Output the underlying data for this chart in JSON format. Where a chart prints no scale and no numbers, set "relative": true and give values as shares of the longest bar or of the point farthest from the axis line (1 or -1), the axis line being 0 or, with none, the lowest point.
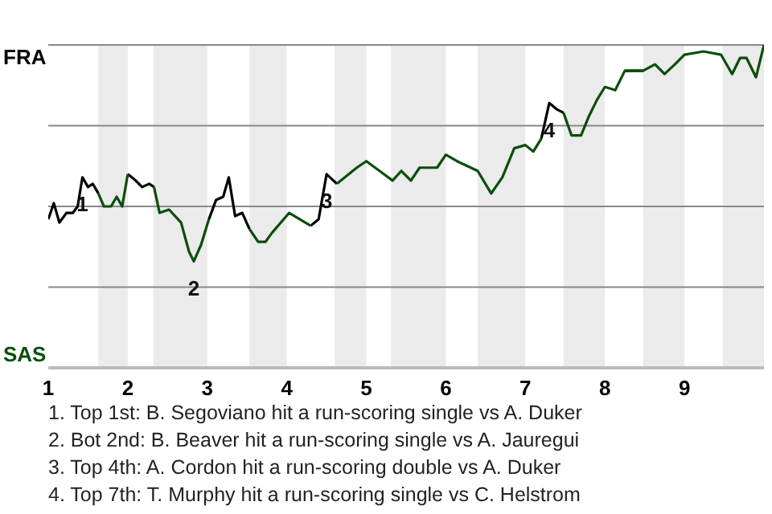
{
  "chart_data": {
    "type": "line",
    "relative": true,
    "grid": "y",
    "legend": false,
    "marker": "none",
    "line_style": "solid",
    "x": [
      1.0,
      1.07,
      1.14,
      1.23,
      1.31,
      1.37,
      1.43,
      1.5,
      1.56,
      1.63,
      1.7,
      1.79,
      1.86,
      1.93,
      2.0,
      2.1,
      2.18,
      2.27,
      2.33,
      2.4,
      2.52,
      2.67,
      2.77,
      2.83,
      2.92,
      3.02,
      3.11,
      3.2,
      3.27,
      3.35,
      3.44,
      3.53,
      3.64,
      3.73,
      3.82,
      4.03,
      4.3,
      4.4,
      4.5,
      4.63,
      4.88,
      5.0,
      5.22,
      5.33,
      5.44,
      5.56,
      5.67,
      5.89,
      6.0,
      6.14,
      6.4,
      6.57,
      6.71,
      6.86,
      7.0,
      7.1,
      7.2,
      7.3,
      7.4,
      7.48,
      7.58,
      7.7,
      7.8,
      7.9,
      8.0,
      8.13,
      8.25,
      8.48,
      8.63,
      8.75,
      8.88,
      9.0,
      9.24,
      9.46,
      9.6,
      9.7,
      9.78,
      9.9,
      10.0
    ],
    "xlim": [
      1,
      10
    ],
    "xticks": [
      1,
      2,
      3,
      4,
      5,
      6,
      7,
      8,
      9
    ],
    "series": [
      {
        "name": "FRA",
        "color": "#000000",
        "values": [
          0.46,
          0.51,
          0.45,
          0.48,
          0.48,
          0.5,
          0.59,
          0.56,
          0.57,
          0.54,
          null,
          null,
          null,
          null,
          0.6,
          0.58,
          0.56,
          0.57,
          0.56,
          null,
          null,
          null,
          null,
          null,
          null,
          0.46,
          0.52,
          0.53,
          0.59,
          0.47,
          0.48,
          0.43,
          null,
          null,
          null,
          null,
          0.44,
          0.46,
          0.6,
          0.57,
          null,
          null,
          null,
          null,
          null,
          null,
          null,
          null,
          null,
          null,
          null,
          null,
          null,
          null,
          null,
          null,
          0.71,
          0.82,
          0.8,
          0.79,
          null,
          null,
          null,
          null,
          null,
          null,
          0.92,
          0.92,
          null,
          null,
          null,
          null,
          null,
          null,
          null,
          null,
          null,
          null,
          null
        ]
      },
      {
        "name": "SAS",
        "color": "#0b4d0b",
        "values": [
          null,
          null,
          null,
          null,
          null,
          null,
          null,
          null,
          null,
          0.54,
          0.5,
          0.5,
          0.53,
          0.5,
          0.6,
          null,
          null,
          null,
          0.56,
          0.48,
          0.49,
          0.45,
          0.36,
          0.33,
          0.38,
          0.46,
          null,
          null,
          null,
          null,
          null,
          0.43,
          0.39,
          0.39,
          0.42,
          0.48,
          0.44,
          null,
          null,
          0.57,
          0.62,
          0.64,
          0.6,
          0.58,
          0.61,
          0.58,
          0.62,
          0.62,
          0.66,
          0.64,
          0.61,
          0.54,
          0.59,
          0.68,
          0.69,
          0.67,
          0.71,
          null,
          null,
          0.79,
          0.72,
          0.72,
          0.78,
          0.83,
          0.87,
          0.86,
          0.92,
          0.92,
          0.94,
          0.91,
          0.94,
          0.97,
          0.98,
          0.97,
          0.91,
          0.96,
          0.96,
          0.9,
          1.0
        ]
      }
    ],
    "bands": [
      {
        "axis": "x",
        "from": 1.63,
        "to": 2,
        "color": "#ebebeb"
      },
      {
        "axis": "x",
        "from": 2.32,
        "to": 3,
        "color": "#ebebeb"
      },
      {
        "axis": "x",
        "from": 3.53,
        "to": 4,
        "color": "#ebebeb"
      },
      {
        "axis": "x",
        "from": 4.6,
        "to": 5,
        "color": "#ebebeb"
      },
      {
        "axis": "x",
        "from": 5.31,
        "to": 6,
        "color": "#ebebeb"
      },
      {
        "axis": "x",
        "from": 6.4,
        "to": 7,
        "color": "#ebebeb"
      },
      {
        "axis": "x",
        "from": 7.48,
        "to": 8,
        "color": "#ebebeb"
      },
      {
        "axis": "x",
        "from": 8.48,
        "to": 9,
        "color": "#ebebeb"
      },
      {
        "axis": "x",
        "from": 9.48,
        "to": 10,
        "color": "#ebebeb"
      }
    ],
    "annotations": [
      {
        "text": "1",
        "x": 1.43,
        "y": 0.59
      },
      {
        "text": "2",
        "x": 2.83,
        "y": 0.33
      },
      {
        "text": "3",
        "x": 4.5,
        "y": 0.6
      },
      {
        "text": "4",
        "x": 7.3,
        "y": 0.82
      },
      "1. Top 1st: B. Segoviano hit a run-scoring single vs A. Duker",
      "2. Bot 2nd: B. Beaver hit a run-scoring single vs A. Jauregui",
      "3. Top 4th: A. Cordon hit a run-scoring double vs A. Duker",
      "4. Top 7th: T. Murphy hit a run-scoring single vs C. Helstrom"
    ]
  }
}
